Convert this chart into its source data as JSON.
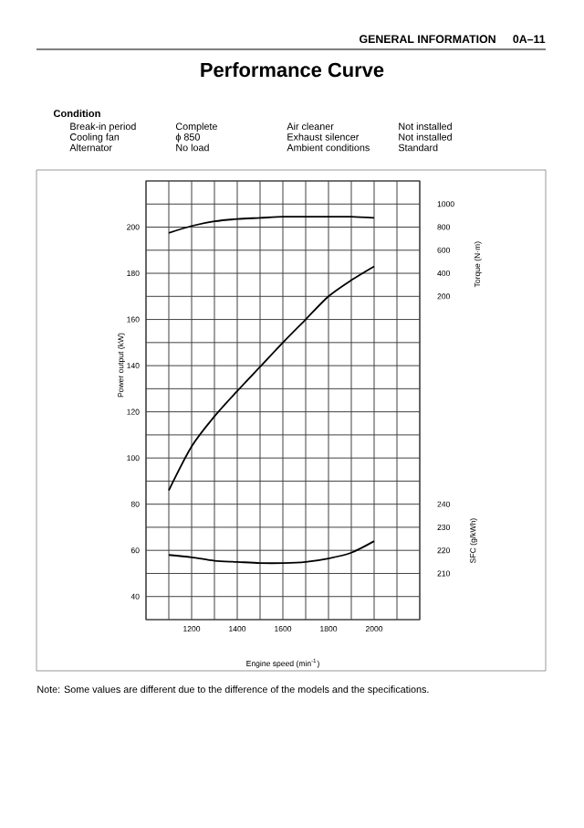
{
  "chart_data": {
    "type": "line",
    "title": "Performance Curve",
    "xlabel": "Engine speed (min$^{-1}$)",
    "ylabel": "Power output (kW)",
    "y2label": "Torque (N·m)",
    "y3label": "SFC (g/kWh)",
    "xlim": [
      1000,
      2200
    ],
    "xticks": [
      {
        "value": 1000,
        "label": null
      },
      {
        "value": 1100,
        "label": null
      },
      1200,
      {
        "value": 1300,
        "label": null
      },
      1400,
      {
        "value": 1500,
        "label": null
      },
      1600,
      {
        "value": 1700,
        "label": null
      },
      1800,
      {
        "value": 1900,
        "label": null
      },
      2000,
      {
        "value": 2100,
        "label": null
      },
      {
        "value": 2200,
        "label": null
      }
    ],
    "ylim": [
      30,
      220
    ],
    "yticks": [
      {
        "value": 30,
        "label": null
      },
      40,
      {
        "value": 50,
        "label": null
      },
      60,
      {
        "value": 70,
        "label": null
      },
      80,
      {
        "value": 90,
        "label": null
      },
      100,
      {
        "value": 110,
        "label": null
      },
      120,
      {
        "value": 130,
        "label": null
      },
      140,
      {
        "value": 150,
        "label": null
      },
      160,
      {
        "value": 170,
        "label": null
      },
      180,
      {
        "value": 190,
        "label": null
      },
      200,
      {
        "value": 210,
        "label": null
      },
      {
        "value": 220,
        "label": null
      }
    ],
    "y2lim": [
      -2600,
      1200
    ],
    "y2ticks": [
      200,
      400,
      600,
      800,
      1000
    ],
    "y3lim": [
      190,
      380
    ],
    "y3ticks": [
      210,
      220,
      230,
      240
    ],
    "grid": true,
    "line_style": "solid",
    "marker": "none",
    "series": [
      {
        "color": "#000000",
        "axis": "y2",
        "x": [
          1100,
          1200,
          1300,
          1400,
          1500,
          1600,
          1700,
          1800,
          1900,
          2000
        ],
        "values": [
          750,
          810,
          850,
          870,
          880,
          890,
          890,
          890,
          890,
          880
        ]
      },
      {
        "color": "#000000",
        "x": [
          1100,
          1200,
          1300,
          1400,
          1500,
          1600,
          1700,
          1800,
          1900,
          2000
        ],
        "values": [
          86,
          105,
          118,
          129,
          139.5,
          150,
          160,
          170,
          177,
          183
        ]
      },
      {
        "color": "#000000",
        "axis": "y3",
        "x": [
          1100,
          1200,
          1300,
          1400,
          1500,
          1600,
          1700,
          1800,
          1900,
          2000
        ],
        "values": [
          218,
          217,
          215.5,
          215,
          214.5,
          214.5,
          215,
          216.5,
          219,
          224
        ]
      }
    ],
    "annotations": [
      "GENERAL INFORMATION",
      "0A–11",
      "Condition",
      "Break-in period",
      "Complete",
      "Air cleaner",
      "Not installed",
      "Cooling fan",
      "ϕ 850",
      "Exhaust silencer",
      "Not installed",
      "Alternator",
      "No load",
      "Ambient conditions",
      "Standard",
      "Note:  Some values are different due to the difference of the models and the specifications."
    ]
  }
}
